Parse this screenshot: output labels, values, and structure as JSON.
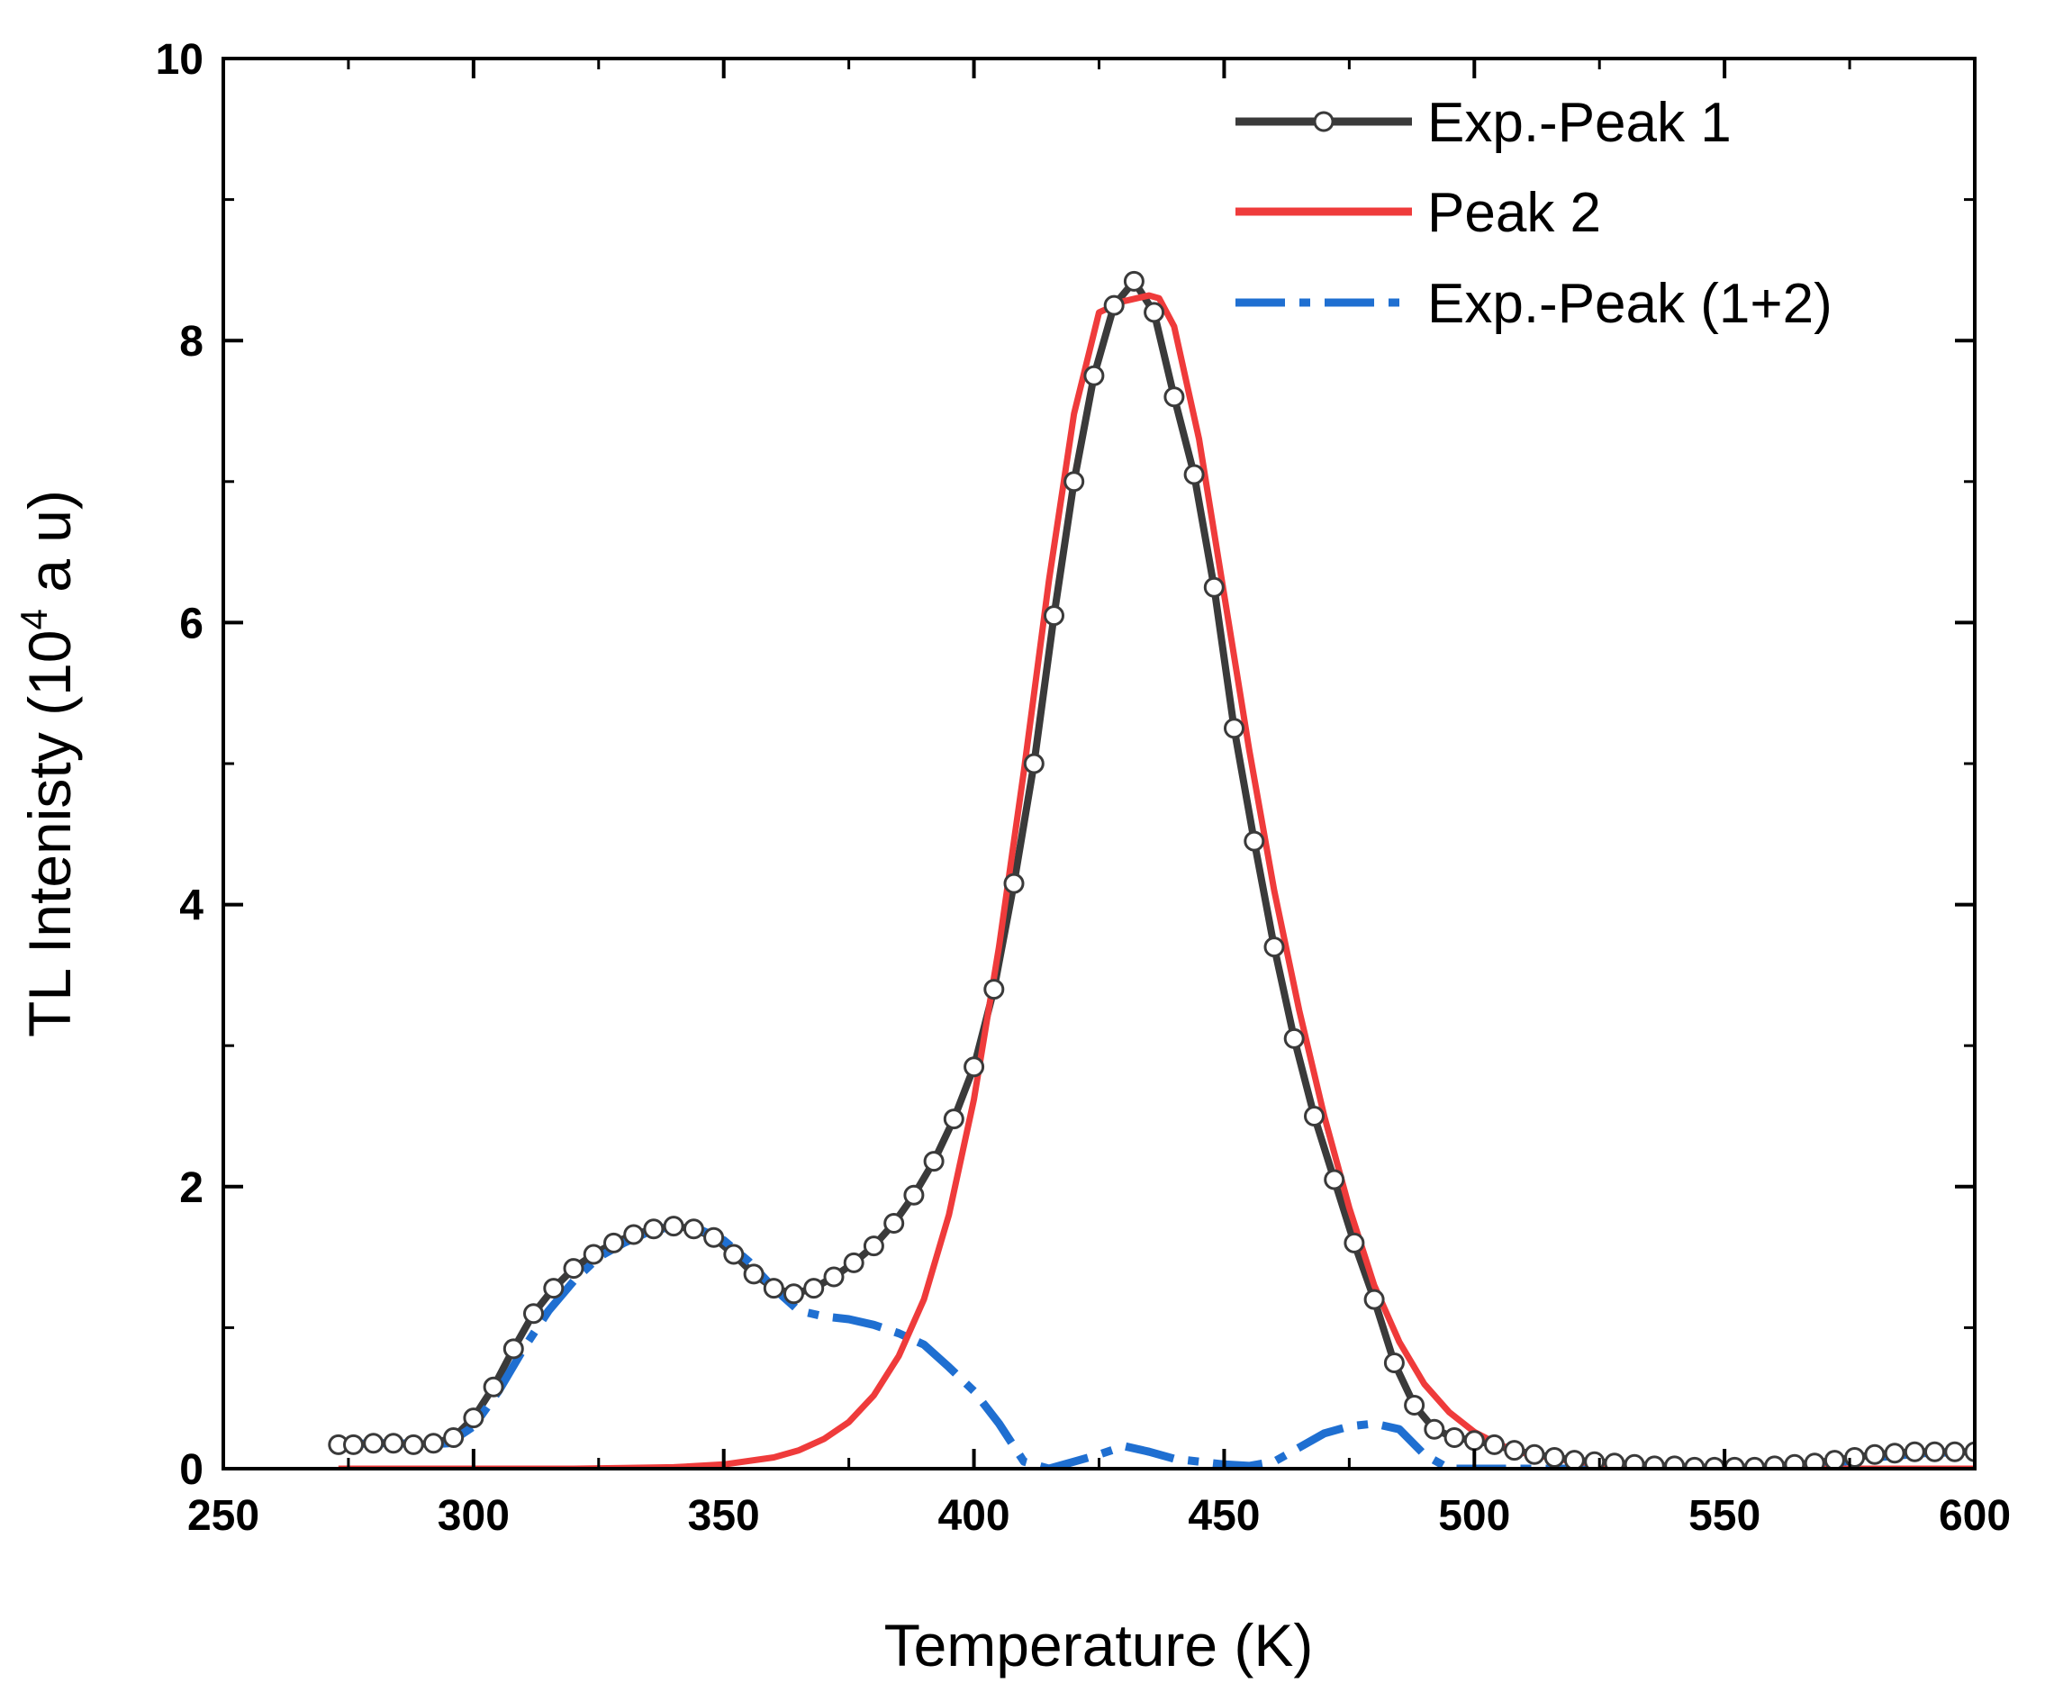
{
  "chart_data": {
    "type": "line",
    "title": "",
    "xlabel": "Temperature (K)",
    "ylabel_prefix": "TL Intenisty (10",
    "ylabel_exp": "4",
    "ylabel_suffix": " a u)",
    "xlim": [
      250,
      600
    ],
    "ylim": [
      0,
      10
    ],
    "xticks": [
      250,
      300,
      350,
      400,
      450,
      500,
      550,
      600
    ],
    "yticks": [
      0,
      2,
      4,
      6,
      8,
      10
    ],
    "grid": false,
    "legend_position": "top-right",
    "colors": {
      "exp": "#3a3a3a",
      "peak2": "#ef3b3b",
      "diff": "#1f6fd1",
      "axis": "#000000"
    },
    "series": [
      {
        "name": "Exp.-Peak 1",
        "style": "line-with-open-circles",
        "x": [
          273,
          276,
          280,
          284,
          288,
          292,
          296,
          300,
          304,
          308,
          312,
          316,
          320,
          324,
          328,
          332,
          336,
          340,
          344,
          348,
          352,
          356,
          360,
          364,
          368,
          372,
          376,
          380,
          384,
          388,
          392,
          396,
          400,
          404,
          408,
          412,
          416,
          420,
          424,
          428,
          432,
          436,
          440,
          444,
          448,
          452,
          456,
          460,
          464,
          468,
          472,
          476,
          480,
          484,
          488,
          492,
          496,
          500,
          504,
          508,
          512,
          516,
          520,
          524,
          528,
          532,
          536,
          540,
          544,
          548,
          552,
          556,
          560,
          564,
          568,
          572,
          576,
          580,
          584,
          588,
          592,
          596,
          600
        ],
        "y": [
          0.17,
          0.17,
          0.18,
          0.18,
          0.17,
          0.18,
          0.22,
          0.36,
          0.58,
          0.85,
          1.1,
          1.28,
          1.42,
          1.52,
          1.6,
          1.66,
          1.7,
          1.72,
          1.7,
          1.64,
          1.52,
          1.38,
          1.28,
          1.24,
          1.28,
          1.36,
          1.46,
          1.58,
          1.74,
          1.94,
          2.18,
          2.48,
          2.85,
          3.4,
          4.15,
          5.0,
          6.05,
          7.0,
          7.75,
          8.25,
          8.42,
          8.2,
          7.6,
          7.05,
          6.25,
          5.25,
          4.45,
          3.7,
          3.05,
          2.5,
          2.05,
          1.6,
          1.2,
          0.75,
          0.45,
          0.28,
          0.22,
          0.2,
          0.17,
          0.13,
          0.1,
          0.08,
          0.06,
          0.05,
          0.04,
          0.03,
          0.02,
          0.02,
          0.01,
          0.01,
          0.01,
          0.01,
          0.02,
          0.03,
          0.04,
          0.06,
          0.08,
          0.1,
          0.11,
          0.12,
          0.12,
          0.12,
          0.12
        ]
      },
      {
        "name": "Peak 2",
        "style": "solid",
        "x": [
          273,
          280,
          290,
          300,
          310,
          320,
          330,
          340,
          350,
          360,
          365,
          370,
          375,
          380,
          385,
          390,
          395,
          400,
          405,
          410,
          415,
          420,
          425,
          430,
          435,
          437,
          440,
          445,
          450,
          455,
          460,
          465,
          470,
          475,
          480,
          485,
          490,
          495,
          500,
          505,
          510,
          520,
          530,
          540,
          550,
          560,
          570,
          580,
          590,
          600
        ],
        "y": [
          0,
          0,
          0,
          0,
          0,
          0,
          0.005,
          0.01,
          0.03,
          0.08,
          0.13,
          0.21,
          0.33,
          0.52,
          0.8,
          1.2,
          1.8,
          2.62,
          3.7,
          4.95,
          6.3,
          7.48,
          8.2,
          8.28,
          8.32,
          8.3,
          8.1,
          7.3,
          6.2,
          5.1,
          4.1,
          3.25,
          2.5,
          1.85,
          1.3,
          0.9,
          0.6,
          0.4,
          0.26,
          0.17,
          0.11,
          0.05,
          0.02,
          0.01,
          0.005,
          0,
          0,
          0,
          0,
          0
        ]
      },
      {
        "name": "Exp.-Peak (1+2)",
        "style": "dash-dot",
        "x": [
          273,
          280,
          285,
          290,
          295,
          300,
          305,
          310,
          315,
          320,
          325,
          330,
          335,
          340,
          345,
          350,
          355,
          360,
          365,
          370,
          375,
          380,
          385,
          390,
          395,
          400,
          405,
          410,
          415,
          420,
          425,
          430,
          435,
          440,
          445,
          450,
          455,
          460,
          465,
          470,
          475,
          480,
          485,
          490,
          495,
          500,
          510,
          520,
          530,
          540,
          550,
          560,
          570,
          580,
          590,
          600
        ],
        "y": [
          0.17,
          0.18,
          0.18,
          0.17,
          0.18,
          0.3,
          0.55,
          0.85,
          1.12,
          1.33,
          1.5,
          1.6,
          1.68,
          1.72,
          1.7,
          1.62,
          1.47,
          1.28,
          1.12,
          1.08,
          1.06,
          1.02,
          0.96,
          0.88,
          0.72,
          0.55,
          0.32,
          0.05,
          0,
          0.05,
          0.1,
          0.16,
          0.12,
          0.07,
          0.05,
          0.03,
          0.02,
          0.05,
          0.15,
          0.25,
          0.3,
          0.32,
          0.28,
          0.1,
          0,
          0,
          0,
          0,
          0,
          0,
          0,
          0,
          0.03,
          0.08,
          0.11,
          0.12
        ]
      }
    ]
  }
}
